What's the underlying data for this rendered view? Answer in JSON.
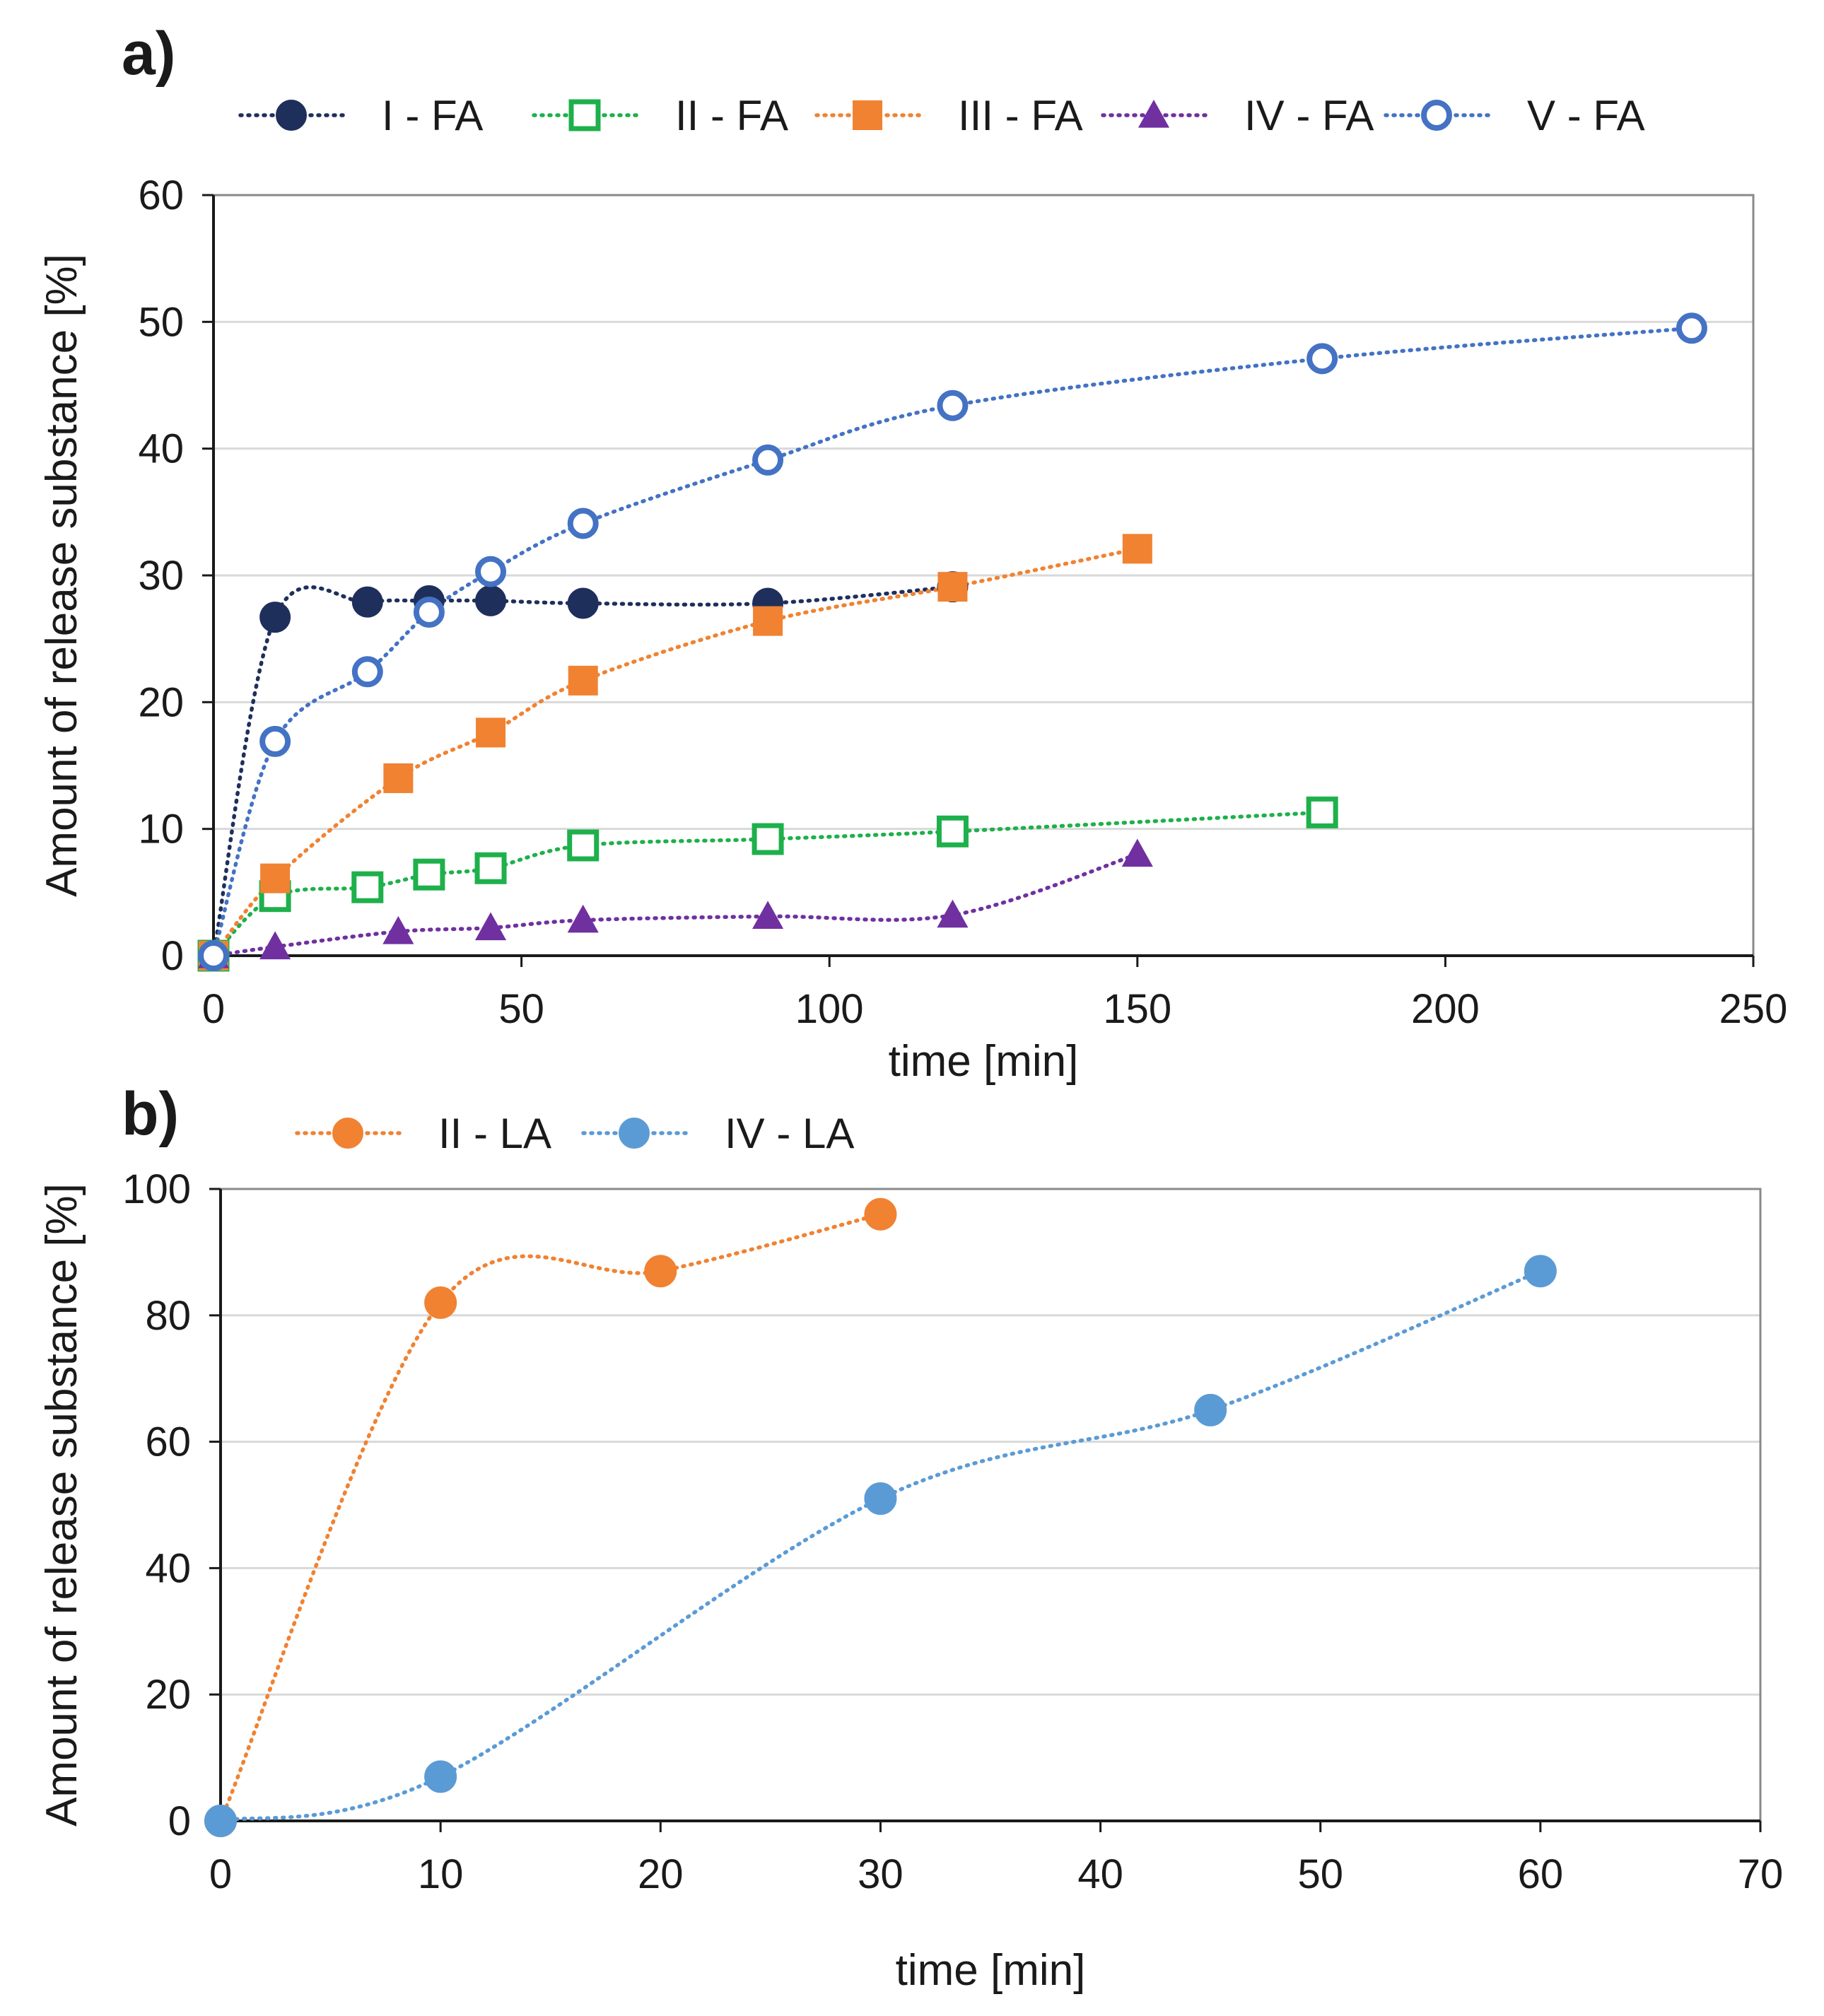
{
  "chart_data": [
    {
      "type": "scatter",
      "panel_label": "a)",
      "title": "",
      "xlabel": "time [min]",
      "ylabel": "Amount of release substance [%]",
      "xlim": [
        0,
        250
      ],
      "ylim": [
        0,
        60
      ],
      "xticks": [
        0,
        50,
        100,
        150,
        200,
        250
      ],
      "yticks": [
        0,
        10,
        20,
        30,
        40,
        50,
        60
      ],
      "grid": "horizontal",
      "legend_position": "top",
      "series": [
        {
          "name": "I - FA",
          "color": "#1f2f5c",
          "marker": "filled-circle",
          "x": [
            0,
            10,
            25,
            35,
            45,
            60,
            90,
            120
          ],
          "y": [
            0,
            26.7,
            27.9,
            28.0,
            28.0,
            27.8,
            27.8,
            29.1
          ]
        },
        {
          "name": "II - FA",
          "color": "#1eb04b",
          "marker": "open-square",
          "x": [
            0,
            10,
            25,
            35,
            45,
            60,
            90,
            120,
            180
          ],
          "y": [
            0,
            4.7,
            5.4,
            6.4,
            6.9,
            8.7,
            9.2,
            9.8,
            11.3
          ]
        },
        {
          "name": "III - FA",
          "color": "#f08232",
          "marker": "filled-square",
          "x": [
            0,
            10,
            30,
            45,
            60,
            90,
            120,
            150
          ],
          "y": [
            0,
            6.1,
            14.0,
            17.6,
            21.7,
            26.4,
            29.1,
            32.1
          ]
        },
        {
          "name": "IV - FA",
          "color": "#7030a0",
          "marker": "filled-triangle",
          "x": [
            0,
            10,
            30,
            45,
            60,
            90,
            120,
            150
          ],
          "y": [
            0,
            0.7,
            1.9,
            2.2,
            2.8,
            3.1,
            3.2,
            8.0
          ]
        },
        {
          "name": "V - FA",
          "color": "#4472c4",
          "marker": "open-circle",
          "x": [
            0,
            10,
            25,
            35,
            45,
            60,
            90,
            120,
            180,
            240
          ],
          "y": [
            0,
            16.9,
            22.4,
            27.1,
            30.3,
            34.1,
            39.1,
            43.4,
            47.1,
            49.5
          ]
        }
      ]
    },
    {
      "type": "scatter",
      "panel_label": "b)",
      "title": "",
      "xlabel": "time [min]",
      "ylabel": "Amount of release substance [%]",
      "xlim": [
        0,
        70
      ],
      "ylim": [
        0,
        100
      ],
      "xticks": [
        0,
        10,
        20,
        30,
        40,
        50,
        60,
        70
      ],
      "yticks": [
        0,
        20,
        40,
        60,
        80,
        100
      ],
      "grid": "horizontal",
      "legend_position": "top",
      "series": [
        {
          "name": "II - LA",
          "color": "#f08232",
          "marker": "filled-circle",
          "x": [
            0,
            10,
            20,
            30
          ],
          "y": [
            0,
            82,
            87,
            96
          ]
        },
        {
          "name": "IV - LA",
          "color": "#5b9bd5",
          "marker": "filled-circle",
          "x": [
            0,
            10,
            30,
            45,
            60
          ],
          "y": [
            0,
            7,
            51,
            65,
            87
          ]
        }
      ]
    }
  ]
}
